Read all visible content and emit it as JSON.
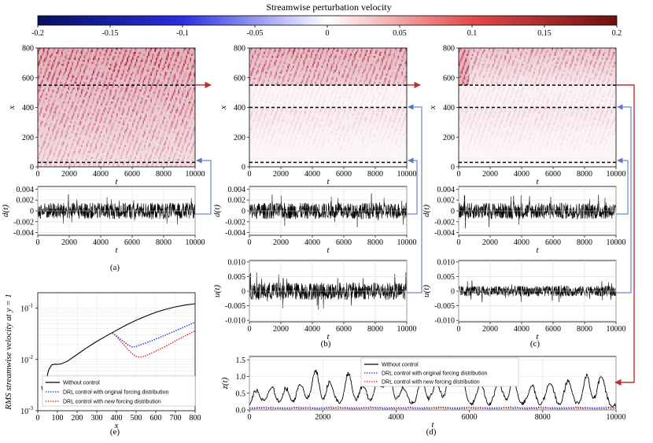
{
  "colorbar": {
    "title": "Streamwise perturbation velocity",
    "ticks": [
      "-0.2",
      "-0.15",
      "-0.1",
      "-0.05",
      "0",
      "0.05",
      "0.1",
      "0.15",
      "0.2"
    ],
    "range": [
      -0.2,
      0.2
    ],
    "colors": {
      "low": "#08105e",
      "mid": "#ffffff",
      "high": "#6e1010"
    }
  },
  "chart_data": [
    {
      "id": "a-top",
      "type": "heatmap",
      "xlabel": "t",
      "ylabel": "x",
      "xticks": [
        "0",
        "2000",
        "4000",
        "6000",
        "8000",
        "10000"
      ],
      "yticks": [
        "0",
        "200",
        "400",
        "600",
        "800"
      ],
      "xlim": [
        0,
        10000
      ],
      "ylim": [
        0,
        800
      ],
      "dashed_lines_at_x": [
        30,
        550
      ],
      "description_value": "strong positive streaks, intensity rising with x"
    },
    {
      "id": "a-bottom",
      "type": "line",
      "xlabel": "t",
      "ylabel": "d(t)",
      "xticks": [
        "0",
        "2000",
        "4000",
        "6000",
        "8000",
        "10000"
      ],
      "yticks": [
        "-0.004",
        "-0.002",
        "0",
        "0.002",
        "0.004"
      ],
      "xlim": [
        0,
        10000
      ],
      "ylim": [
        -0.0045,
        0.0045
      ],
      "amplitude": 0.0015
    },
    {
      "id": "b-top",
      "type": "heatmap",
      "xlabel": "t",
      "ylabel": "x",
      "xticks": [
        "0",
        "2000",
        "4000",
        "6000",
        "8000",
        "10000"
      ],
      "yticks": [
        "0",
        "200",
        "400",
        "600",
        "800"
      ],
      "xlim": [
        0,
        10000
      ],
      "ylim": [
        0,
        800
      ],
      "dashed_lines_at_x": [
        30,
        400,
        550
      ]
    },
    {
      "id": "b-mid",
      "type": "line",
      "xlabel": "t",
      "ylabel": "d(t)",
      "xticks": [
        "0",
        "2000",
        "4000",
        "6000",
        "8000",
        "10000"
      ],
      "yticks": [
        "-0.004",
        "-0.002",
        "0",
        "0.002",
        "0.004"
      ],
      "xlim": [
        0,
        10000
      ],
      "ylim": [
        -0.0045,
        0.0045
      ],
      "amplitude": 0.0015
    },
    {
      "id": "b-bottom",
      "type": "line",
      "xlabel": "t",
      "ylabel": "u(t)",
      "xticks": [
        "0",
        "2000",
        "4000",
        "6000",
        "8000",
        "10000"
      ],
      "yticks": [
        "-0.010",
        "-0.005",
        "0",
        "0.005",
        "0.010"
      ],
      "xlim": [
        0,
        10000
      ],
      "ylim": [
        -0.0105,
        0.0105
      ],
      "amplitude": 0.003
    },
    {
      "id": "c-top",
      "type": "heatmap",
      "xlabel": "t",
      "ylabel": "x",
      "xticks": [
        "0",
        "2000",
        "4000",
        "6000",
        "8000",
        "10000"
      ],
      "yticks": [
        "0",
        "200",
        "400",
        "600",
        "800"
      ],
      "xlim": [
        0,
        10000
      ],
      "ylim": [
        0,
        800
      ],
      "dashed_lines_at_x": [
        30,
        400,
        550
      ]
    },
    {
      "id": "c-mid",
      "type": "line",
      "xlabel": "t",
      "ylabel": "d(t)",
      "xticks": [
        "0",
        "2000",
        "4000",
        "6000",
        "8000",
        "10000"
      ],
      "yticks": [
        "-0.004",
        "-0.002",
        "0",
        "0.002",
        "0.004"
      ],
      "xlim": [
        0,
        10000
      ],
      "ylim": [
        -0.0045,
        0.0045
      ],
      "amplitude": 0.0015
    },
    {
      "id": "c-bottom",
      "type": "line",
      "xlabel": "t",
      "ylabel": "u(t)",
      "xticks": [
        "0",
        "2000",
        "4000",
        "6000",
        "8000",
        "10000"
      ],
      "yticks": [
        "-0.010",
        "-0.005",
        "0",
        "0.005",
        "0.010"
      ],
      "xlim": [
        0,
        10000
      ],
      "ylim": [
        -0.0105,
        0.0105
      ],
      "amplitude": 0.0018
    },
    {
      "id": "e",
      "type": "line",
      "xlabel": "x",
      "ylabel": "RMS streamwise velocity at y = 1",
      "xticks": [
        "0",
        "100",
        "200",
        "300",
        "400",
        "500",
        "600",
        "700",
        "800"
      ],
      "xlim": [
        0,
        800
      ],
      "ylog": true,
      "ylim": [
        0.001,
        0.2
      ],
      "yticks": [
        {
          "base": "10",
          "exp": "-3"
        },
        {
          "base": "10",
          "exp": "-2"
        },
        {
          "base": "10",
          "exp": "-1"
        }
      ],
      "series": [
        {
          "name": "Without control",
          "color": "#000000",
          "style": "solid",
          "x": [
            20,
            30,
            40,
            55,
            70,
            85,
            100,
            120,
            150,
            200,
            250,
            300,
            350,
            400,
            450,
            500,
            550,
            600,
            650,
            700,
            750,
            800
          ],
          "y": [
            0.003,
            0.0019,
            0.0035,
            0.0062,
            0.0078,
            0.0081,
            0.008,
            0.0082,
            0.0092,
            0.0125,
            0.017,
            0.0225,
            0.029,
            0.037,
            0.047,
            0.058,
            0.07,
            0.083,
            0.095,
            0.106,
            0.115,
            0.122
          ]
        },
        {
          "name": "DRL control with original forcing distribution",
          "color": "#2233dd",
          "style": "dotted",
          "x": [
            380,
            400,
            420,
            440,
            460,
            480,
            500,
            550,
            600,
            650,
            700,
            750,
            800
          ],
          "y": [
            0.033,
            0.029,
            0.025,
            0.022,
            0.019,
            0.0175,
            0.018,
            0.021,
            0.025,
            0.03,
            0.036,
            0.044,
            0.053
          ]
        },
        {
          "name": "DRL control with new forcing distribution",
          "color": "#dd2222",
          "style": "dotted",
          "x": [
            380,
            400,
            420,
            440,
            460,
            480,
            500,
            520,
            550,
            600,
            650,
            700,
            750,
            800
          ],
          "y": [
            0.033,
            0.028,
            0.023,
            0.019,
            0.0155,
            0.013,
            0.0115,
            0.011,
            0.0118,
            0.0145,
            0.018,
            0.023,
            0.029,
            0.036
          ]
        }
      ]
    },
    {
      "id": "d",
      "type": "line",
      "xlabel": "t",
      "ylabel": "z(t)",
      "xticks": [
        "0",
        "2000",
        "4000",
        "6000",
        "8000",
        "10000"
      ],
      "yticks": [
        "0.0",
        "0.5",
        "1.0",
        "1.5"
      ],
      "xlim": [
        0,
        10000
      ],
      "ylim": [
        0,
        1.6
      ],
      "series": [
        {
          "name": "Without control",
          "color": "#000000",
          "style": "solid",
          "peaks_t": [
            200,
            600,
            1000,
            1400,
            1800,
            2200,
            2700,
            3100,
            3500,
            3800,
            4200,
            4700,
            5100,
            5500,
            5800,
            6300,
            6800,
            7200,
            7700,
            8200,
            8700,
            9200,
            9600
          ],
          "peaks_z": [
            0.45,
            0.55,
            0.5,
            0.65,
            1.05,
            0.7,
            0.95,
            0.6,
            0.75,
            1.05,
            0.55,
            0.8,
            0.7,
            1.38,
            0.75,
            0.65,
            0.7,
            0.75,
            0.6,
            0.7,
            0.75,
            0.85,
            0.9
          ]
        },
        {
          "name": "DRL control with original forcing distribution",
          "color": "#2233dd",
          "style": "dotted",
          "level": 0.06
        },
        {
          "name": "DRL control with new forcing distribution",
          "color": "#dd2222",
          "style": "dotted",
          "level": 0.03
        }
      ]
    }
  ],
  "captions": {
    "a": "(a)",
    "b": "(b)",
    "c": "(c)",
    "d": "(d)",
    "e": "(e)"
  }
}
